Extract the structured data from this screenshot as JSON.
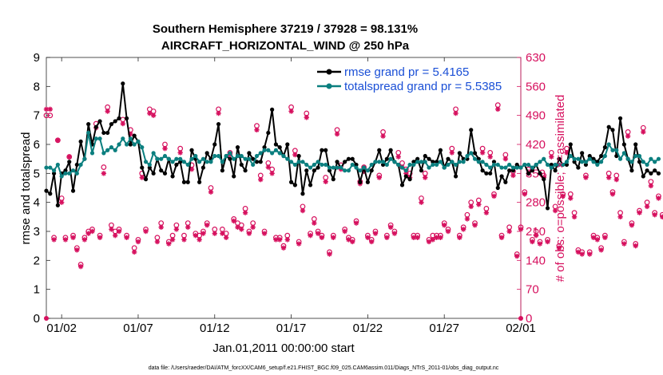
{
  "chart_data": {
    "type": "line",
    "title": "Southern Hemisphere 37219 / 37928 = 98.131%",
    "subtitle": "AIRCRAFT_HORIZONTAL_WIND @ 250 hPa",
    "xlabel": "Jan.01,2011 00:00:00 start",
    "ylabel_left": "rmse and totalspread",
    "ylabel_right": "# of obs: o=possible; ×=assimilated",
    "footer": "data file: /Users/raeder/DAI/ATM_forcXX/CAM6_setup/f.e21.FHIST_BGC.f09_025.CAM6assim.011/Diags_NTrS_2011-01/obs_diag_output.nc",
    "xlim": [
      0,
      31
    ],
    "ylim_left": [
      0,
      9
    ],
    "ylim_right": [
      0,
      630
    ],
    "xtick_positions": [
      1,
      6,
      11,
      16,
      21,
      26,
      31
    ],
    "xtick_labels": [
      "01/02",
      "01/07",
      "01/12",
      "01/17",
      "01/22",
      "01/27",
      "02/01"
    ],
    "yticks_left": [
      "0",
      "1",
      "2",
      "3",
      "4",
      "5",
      "6",
      "7",
      "8",
      "9"
    ],
    "yticks_right": [
      "0",
      "70",
      "140",
      "210",
      "280",
      "350",
      "420",
      "490",
      "560",
      "630"
    ],
    "colors": {
      "rmse": "#000000",
      "totalspread": "#0b7f7f",
      "obs": "#d6105e",
      "legend_text": "#1a4fd6"
    },
    "series": [
      {
        "name": "rmse grand pr = 5.4165",
        "axis": "left",
        "x0": 0,
        "dx": 0.25,
        "values": [
          4.4,
          4.3,
          5.0,
          3.9,
          5.0,
          5.1,
          5.4,
          4.4,
          5.3,
          6.1,
          5.5,
          6.7,
          6.0,
          6.6,
          6.8,
          6.4,
          6.4,
          6.7,
          6.8,
          6.9,
          8.1,
          6.9,
          6.0,
          6.3,
          6.1,
          5.2,
          4.8,
          5.2,
          5.0,
          5.5,
          5.1,
          5.0,
          5.5,
          4.9,
          5.3,
          5.4,
          4.7,
          4.7,
          5.8,
          5.5,
          4.7,
          5.2,
          5.7,
          5.5,
          6.0,
          6.7,
          5.1,
          5.6,
          5.5,
          4.9,
          5.9,
          5.3,
          5.1,
          5.7,
          5.5,
          5.4,
          5.4,
          5.9,
          6.4,
          7.2,
          6.0,
          5.9,
          5.6,
          6.0,
          4.7,
          4.6,
          5.6,
          4.3,
          5.1,
          4.6,
          5.1,
          5.2,
          5.8,
          5.8,
          5.1,
          4.8,
          5.4,
          5.2,
          5.4,
          5.5,
          5.5,
          5.3,
          4.7,
          5.2,
          4.7,
          5.1,
          5.4,
          5.8,
          5.3,
          5.5,
          5.8,
          5.4,
          5.3,
          4.6,
          4.9,
          4.8,
          5.4,
          5.5,
          5.1,
          5.6,
          5.5,
          5.4,
          5.4,
          5.8,
          5.2,
          5.5,
          5.4,
          4.9,
          5.7,
          5.5,
          5.5,
          6.5,
          5.7,
          5.5,
          5.1,
          5.0,
          5.0,
          5.4,
          4.5,
          4.9,
          4.7,
          5.1,
          5.1,
          5.3,
          5.2,
          5.3,
          5.0,
          5.1,
          5.3,
          5.0,
          4.8,
          3.8,
          5.3,
          5.1,
          5.5,
          5.3,
          5.3,
          6.0,
          5.4,
          5.2,
          5.7,
          5.3,
          5.6,
          5.5,
          5.4,
          5.6,
          5.9,
          6.6,
          6.5,
          5.6,
          6.9,
          6.0,
          5.5,
          5.1,
          6.0,
          5.4,
          4.9,
          5.1,
          5.0,
          5.1,
          5.0
        ],
        "marker": "dot"
      },
      {
        "name": "totalspread grand pr = 5.5385",
        "axis": "left",
        "x0": 0,
        "dx": 0.25,
        "values": [
          5.2,
          5.2,
          5.1,
          5.3,
          4.9,
          5.0,
          5.0,
          5.1,
          5.0,
          5.3,
          5.5,
          6.4,
          5.7,
          6.2,
          6.2,
          5.7,
          5.8,
          5.9,
          5.8,
          6.0,
          6.2,
          6.0,
          6.2,
          6.0,
          6.1,
          5.9,
          5.4,
          5.3,
          5.7,
          5.5,
          5.5,
          5.6,
          5.5,
          5.4,
          5.5,
          5.5,
          5.4,
          5.3,
          5.5,
          5.6,
          5.4,
          5.5,
          5.4,
          5.4,
          5.6,
          5.6,
          5.4,
          5.6,
          5.7,
          5.5,
          5.6,
          5.6,
          5.5,
          5.5,
          5.3,
          5.6,
          5.7,
          5.8,
          5.8,
          5.7,
          5.8,
          5.7,
          5.6,
          5.5,
          5.4,
          5.3,
          5.4,
          5.4,
          5.3,
          5.2,
          5.3,
          5.4,
          5.3,
          5.3,
          5.2,
          5.2,
          5.2,
          5.2,
          5.1,
          5.1,
          5.3,
          5.2,
          5.1,
          5.2,
          5.1,
          5.3,
          5.4,
          5.4,
          5.4,
          5.3,
          5.5,
          5.4,
          5.3,
          5.2,
          5.1,
          5.3,
          5.3,
          5.4,
          5.4,
          5.4,
          5.2,
          5.3,
          5.3,
          5.4,
          5.2,
          5.3,
          5.4,
          5.3,
          5.4,
          5.4,
          5.6,
          5.7,
          5.5,
          5.4,
          5.4,
          5.3,
          5.2,
          5.3,
          5.3,
          5.2,
          5.2,
          5.3,
          5.2,
          5.2,
          5.2,
          5.3,
          5.3,
          5.2,
          5.3,
          5.4,
          5.5,
          5.3,
          5.2,
          5.3,
          5.3,
          5.3,
          5.4,
          5.6,
          5.5,
          5.5,
          5.4,
          5.4,
          5.5,
          5.4,
          5.3,
          5.4,
          5.6,
          6.0,
          5.8,
          5.8,
          5.5,
          5.7,
          5.5,
          5.4,
          5.6,
          5.6,
          5.4,
          5.3,
          5.5,
          5.4,
          5.5
        ],
        "marker": "dot"
      },
      {
        "name": "obs possible",
        "axis": "right",
        "x0": 0,
        "dx": 0.25,
        "marker": "circle",
        "values": [
          490,
          490,
          195,
          430,
          290,
          195,
          390,
          200,
          170,
          130,
          195,
          210,
          215,
          470,
          200,
          365,
          510,
          225,
          210,
          215,
          480,
          200,
          455,
          170,
          190,
          350,
          215,
          505,
          500,
          195,
          230,
          420,
          185,
          200,
          225,
          410,
          200,
          230,
          370,
          205,
          200,
          210,
          230,
          315,
          215,
          505,
          215,
          205,
          400,
          240,
          230,
          225,
          265,
          210,
          230,
          465,
          345,
          210,
          375,
          360,
          195,
          195,
          175,
          200,
          510,
          405,
          185,
          270,
          495,
          205,
          240,
          210,
          200,
          340,
          160,
          200,
          455,
          370,
          215,
          195,
          190,
          235,
          330,
          365,
          200,
          190,
          210,
          345,
          450,
          200,
          225,
          210,
          400,
          375,
          360,
          350,
          200,
          200,
          290,
          350,
          190,
          200,
          200,
          200,
          230,
          215,
          410,
          505,
          200,
          220,
          250,
          280,
          230,
          285,
          410,
          265,
          400,
          300,
          515,
          200,
          395,
          220,
          355,
          155,
          220,
          305,
          360,
          190,
          210,
          185,
          345,
          190,
          400,
          270,
          175,
          300,
          410,
          300,
          255,
          165,
          160,
          345,
          160,
          200,
          195,
          170,
          200,
          350,
          305,
          345,
          255,
          185,
          450,
          230,
          180,
          260,
          460,
          280,
          330,
          255,
          295,
          250,
          285,
          290
        ],
        "note": "right-axis counts"
      },
      {
        "name": "obs assimilated",
        "axis": "right",
        "x0": 0,
        "dx": 0.25,
        "marker": "asterisk",
        "values": [
          505,
          505,
          190,
          430,
          280,
          190,
          390,
          195,
          165,
          125,
          190,
          205,
          210,
          460,
          195,
          350,
          500,
          215,
          200,
          210,
          470,
          195,
          445,
          160,
          185,
          340,
          210,
          495,
          490,
          185,
          220,
          410,
          180,
          190,
          215,
          400,
          190,
          220,
          360,
          200,
          190,
          205,
          225,
          305,
          205,
          495,
          205,
          195,
          395,
          235,
          220,
          215,
          255,
          205,
          220,
          455,
          335,
          205,
          365,
          350,
          190,
          190,
          170,
          190,
          500,
          395,
          180,
          260,
          485,
          200,
          230,
          205,
          195,
          330,
          155,
          195,
          445,
          360,
          210,
          190,
          185,
          230,
          325,
          355,
          195,
          185,
          205,
          340,
          440,
          195,
          220,
          205,
          390,
          365,
          350,
          340,
          195,
          195,
          280,
          340,
          185,
          190,
          195,
          195,
          225,
          210,
          400,
          495,
          195,
          215,
          240,
          270,
          225,
          275,
          400,
          255,
          390,
          295,
          505,
          195,
          385,
          210,
          345,
          150,
          215,
          300,
          350,
          185,
          200,
          180,
          340,
          185,
          390,
          260,
          170,
          295,
          400,
          290,
          245,
          160,
          155,
          340,
          155,
          195,
          190,
          165,
          195,
          340,
          300,
          335,
          245,
          180,
          440,
          225,
          175,
          255,
          450,
          270,
          320,
          250,
          290,
          245,
          280,
          285
        ],
        "note": "right-axis counts"
      }
    ]
  }
}
